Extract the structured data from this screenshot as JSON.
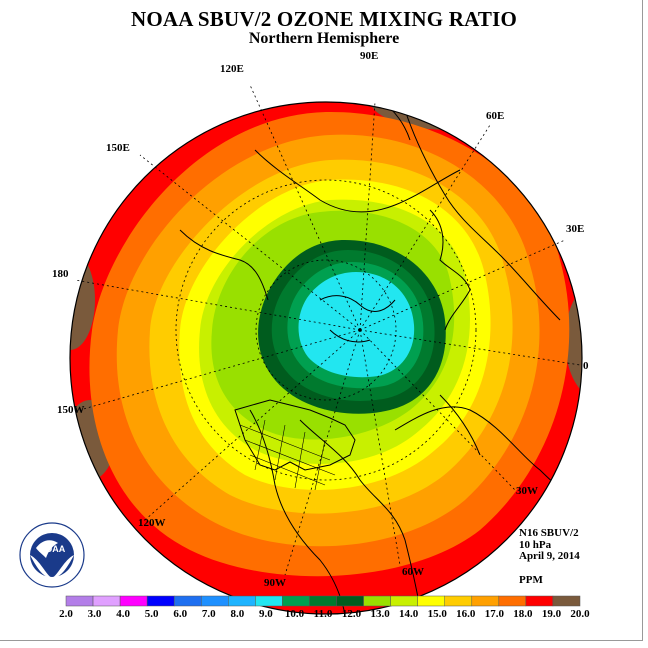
{
  "header": {
    "title": "NOAA SBUV/2 OZONE MIXING RATIO",
    "subtitle": "Northern Hemisphere"
  },
  "longitude_labels": {
    "lon_90e": "90E",
    "lon_120e": "120E",
    "lon_60e": "60E",
    "lon_150e": "150E",
    "lon_30e": "30E",
    "lon_180": "180",
    "lon_0": "0",
    "lon_150w": "150W",
    "lon_30w": "30W",
    "lon_120w": "120W",
    "lon_60w": "60W",
    "lon_90w": "90W"
  },
  "info": {
    "instrument": "N16 SBUV/2",
    "level": "10 hPa",
    "date": "April 9, 2014",
    "units": "PPM"
  },
  "logo": {
    "text": "NOAA",
    "ring_text": "NATIONAL OCEANIC AND ATMOSPHERIC ADMINISTRATION · U.S. DEPARTMENT OF COMMERCE"
  },
  "colorbar": {
    "ticks": [
      "2.0",
      "3.0",
      "4.0",
      "5.0",
      "6.0",
      "7.0",
      "8.0",
      "9.0",
      "10.0",
      "11.0",
      "12.0",
      "13.0",
      "14.0",
      "15.0",
      "16.0",
      "17.0",
      "18.0",
      "19.0",
      "20.0"
    ],
    "colors": [
      "#b37ee8",
      "#e0a0ff",
      "#ff00ff",
      "#0000ff",
      "#1e6ff0",
      "#1e90ff",
      "#1eb4ff",
      "#22e6f0",
      "#00a050",
      "#007a2e",
      "#005c1e",
      "#99e000",
      "#c8f000",
      "#ffff00",
      "#ffcc00",
      "#ffa000",
      "#ff6e00",
      "#ff0000",
      "#7a5a3c"
    ]
  },
  "map_data": {
    "projection": "north polar stereographic",
    "contour_levels_ppm": [
      9.0,
      10.0,
      11.0,
      12.0,
      13.0,
      14.0,
      15.0,
      16.0,
      17.0,
      18.0,
      19.0,
      20.0
    ],
    "polar_max_ppm": "9.0-10.0",
    "outer_min_band_ppm": "19.0-20.0"
  }
}
